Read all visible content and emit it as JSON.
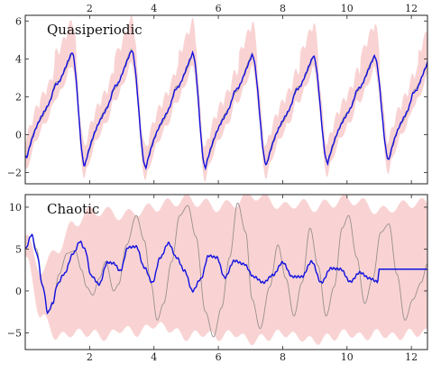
{
  "colors": {
    "band": "#f9d3d3",
    "mean": "#1010e0",
    "truth": "#9a8f8f",
    "axis": "#222222"
  },
  "chart_data": [
    {
      "type": "line",
      "title": "Quasiperiodic",
      "xlim": [
        0,
        12.5
      ],
      "ylim": [
        -2.6,
        6.3
      ],
      "x_ticks": [
        2,
        4,
        6,
        8,
        10,
        12
      ],
      "y_ticks": [
        -2,
        0,
        2,
        4,
        6
      ],
      "x_tick_position": "top",
      "band_half_width": 0.45,
      "peaks": [
        {
          "x": 1.45,
          "y": 4.35
        },
        {
          "x": 3.3,
          "y": 4.45
        },
        {
          "x": 5.2,
          "y": 4.3
        },
        {
          "x": 7.05,
          "y": 4.2
        },
        {
          "x": 8.95,
          "y": 4.15
        },
        {
          "x": 10.85,
          "y": 4.15
        },
        {
          "x": 12.5,
          "y": 3.8
        }
      ],
      "troughs": [
        {
          "x": 0.05,
          "y": -1.2
        },
        {
          "x": 1.85,
          "y": -1.65
        },
        {
          "x": 3.75,
          "y": -1.75
        },
        {
          "x": 5.6,
          "y": -1.75
        },
        {
          "x": 7.5,
          "y": -1.6
        },
        {
          "x": 9.4,
          "y": -1.5
        },
        {
          "x": 11.3,
          "y": -1.35
        }
      ]
    },
    {
      "type": "line",
      "title": "Chaotic",
      "xlim": [
        0,
        12.5
      ],
      "ylim": [
        -7,
        11.5
      ],
      "x_ticks": [
        2,
        4,
        6,
        8,
        10,
        12
      ],
      "y_ticks": [
        -5,
        0,
        5,
        10
      ],
      "x_tick_position": "bottom",
      "mean": {
        "x": [
          0.0,
          0.2,
          0.35,
          0.55,
          0.7,
          0.85,
          1.0,
          1.2,
          1.5,
          1.7,
          1.85,
          2.05,
          2.3,
          2.55,
          2.75,
          2.95,
          3.2,
          3.45,
          3.7,
          3.95,
          4.2,
          4.45,
          4.7,
          4.95,
          5.2,
          5.45,
          5.7,
          5.95,
          6.2,
          6.5,
          6.8,
          7.1,
          7.4,
          7.7,
          8.0,
          8.3,
          8.6,
          8.9,
          9.2,
          9.5,
          9.8,
          10.1,
          10.4,
          10.7,
          10.95,
          11.0,
          12.5
        ],
        "y": [
          5.0,
          6.7,
          4.5,
          0.5,
          -2.6,
          -1.5,
          0.8,
          2.0,
          4.5,
          5.9,
          5.0,
          1.8,
          0.8,
          3.4,
          3.3,
          2.4,
          5.2,
          5.3,
          2.8,
          1.0,
          4.0,
          5.7,
          4.0,
          2.4,
          0.0,
          1.4,
          4.2,
          4.0,
          1.6,
          3.6,
          3.2,
          1.7,
          1.0,
          1.9,
          3.4,
          1.7,
          1.7,
          3.5,
          1.0,
          2.7,
          2.6,
          1.1,
          2.2,
          1.5,
          1.1,
          2.6,
          2.6
        ]
      },
      "truth": {
        "x": [
          0.0,
          0.2,
          0.35,
          0.55,
          0.7,
          0.85,
          1.05,
          1.3,
          1.55,
          1.75,
          1.9,
          2.1,
          2.3,
          2.5,
          2.75,
          2.9,
          3.15,
          3.45,
          3.7,
          3.9,
          4.1,
          4.3,
          4.55,
          4.8,
          5.05,
          5.3,
          5.6,
          5.85,
          6.1,
          6.35,
          6.6,
          6.85,
          7.05,
          7.3,
          7.6,
          7.85,
          8.1,
          8.35,
          8.6,
          8.85,
          9.1,
          9.35,
          9.6,
          9.85,
          10.05,
          10.3,
          10.55,
          10.8,
          11.05,
          11.3,
          11.55,
          11.8,
          12.05,
          12.3,
          12.5
        ],
        "y": [
          5.0,
          6.7,
          5.0,
          0.5,
          -2.6,
          -1.6,
          2.0,
          4.5,
          4.8,
          2.5,
          0.5,
          -0.5,
          1.5,
          3.5,
          0.0,
          0.8,
          5.5,
          9.0,
          6.0,
          1.0,
          -3.5,
          -1.5,
          3.5,
          9.0,
          10.2,
          6.5,
          -2.5,
          -5.5,
          -2.0,
          4.0,
          10.5,
          7.0,
          -1.0,
          -4.5,
          0.5,
          5.5,
          1.5,
          -3.0,
          1.0,
          7.5,
          3.0,
          -3.0,
          0.5,
          7.5,
          9.0,
          4.0,
          -1.5,
          1.5,
          7.0,
          8.0,
          2.0,
          -3.5,
          -1.0,
          1.0,
          3.2
        ]
      },
      "band": {
        "x": [
          0.0,
          0.5,
          1.0,
          1.5,
          2.0,
          2.5,
          3.0,
          3.5,
          4.0,
          4.5,
          5.0,
          5.5,
          6.0,
          6.5,
          7.0,
          7.5,
          8.0,
          8.5,
          9.0,
          9.5,
          10.0,
          10.5,
          11.0,
          11.5,
          12.0,
          12.5
        ],
        "upper": [
          6.5,
          2.5,
          5.0,
          8.0,
          9.5,
          9.5,
          9.0,
          9.5,
          10.0,
          10.5,
          11.0,
          10.5,
          10.0,
          10.5,
          11.5,
          11.0,
          10.0,
          10.5,
          10.0,
          10.5,
          11.0,
          10.5,
          9.5,
          10.0,
          10.5,
          10.5
        ],
        "lower": [
          4.0,
          -3.0,
          -5.5,
          -5.0,
          -5.0,
          -5.5,
          -4.5,
          -5.0,
          -4.0,
          -4.5,
          -5.5,
          -5.0,
          -5.5,
          -5.0,
          -6.0,
          -5.5,
          -5.0,
          -5.5,
          -6.0,
          -5.5,
          -5.0,
          -5.5,
          -5.0,
          -5.5,
          -5.0,
          -5.0
        ]
      }
    }
  ]
}
